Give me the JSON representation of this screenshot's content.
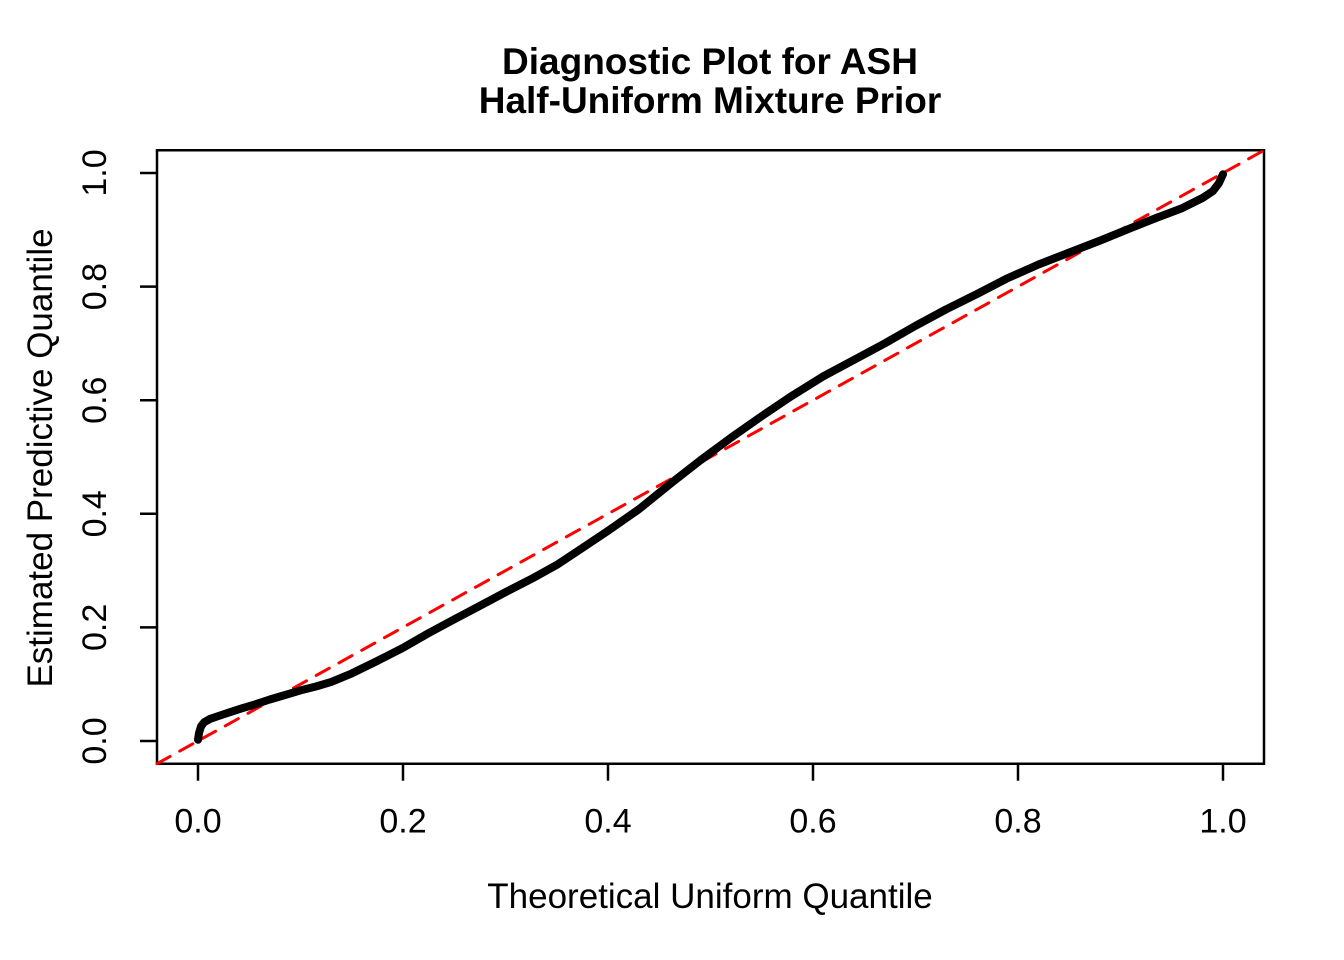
{
  "title": {
    "line1": "Diagnostic Plot for ASH",
    "line2": "Half-Uniform Mixture Prior"
  },
  "colors": {
    "curve": "#000000",
    "reference_line": "#FF0000",
    "background": "#FFFFFF",
    "text": "#000000"
  },
  "chart_data": {
    "type": "line",
    "title": "Diagnostic Plot for ASH\nHalf-Uniform Mixture Prior",
    "xlabel": "Theoretical Uniform Quantile",
    "ylabel": "Estimated Predictive Quantile",
    "xlim": [
      -0.04,
      1.04
    ],
    "ylim": [
      -0.04,
      1.04
    ],
    "x_ticks": [
      0.0,
      0.2,
      0.4,
      0.6,
      0.8,
      1.0
    ],
    "y_ticks": [
      0.0,
      0.2,
      0.4,
      0.6,
      0.8,
      1.0
    ],
    "x_tick_labels": [
      "0.0",
      "0.2",
      "0.4",
      "0.6",
      "0.8",
      "1.0"
    ],
    "y_tick_labels": [
      "0.0",
      "0.2",
      "0.4",
      "0.6",
      "0.8",
      "1.0"
    ],
    "grid": false,
    "legend": null,
    "series": [
      {
        "name": "reference-diagonal",
        "description": "y = x reference line",
        "color": "#FF0000",
        "style": "dashed",
        "width": 3,
        "points": [
          [
            -0.04,
            -0.04
          ],
          [
            1.04,
            1.04
          ]
        ]
      },
      {
        "name": "estimated-vs-theoretical-quantiles",
        "description": "QQ curve of estimated predictive quantiles vs theoretical uniform quantiles",
        "color": "#000000",
        "style": "solid",
        "width": 8,
        "points": [
          [
            0.0,
            0.002
          ],
          [
            0.001,
            0.014
          ],
          [
            0.003,
            0.026
          ],
          [
            0.006,
            0.033
          ],
          [
            0.012,
            0.039
          ],
          [
            0.02,
            0.044
          ],
          [
            0.03,
            0.05
          ],
          [
            0.042,
            0.057
          ],
          [
            0.055,
            0.064
          ],
          [
            0.07,
            0.073
          ],
          [
            0.085,
            0.081
          ],
          [
            0.1,
            0.089
          ],
          [
            0.115,
            0.096
          ],
          [
            0.13,
            0.104
          ],
          [
            0.15,
            0.119
          ],
          [
            0.175,
            0.141
          ],
          [
            0.2,
            0.164
          ],
          [
            0.225,
            0.19
          ],
          [
            0.25,
            0.214
          ],
          [
            0.275,
            0.238
          ],
          [
            0.3,
            0.262
          ],
          [
            0.325,
            0.285
          ],
          [
            0.35,
            0.31
          ],
          [
            0.375,
            0.34
          ],
          [
            0.4,
            0.37
          ],
          [
            0.43,
            0.408
          ],
          [
            0.463,
            0.456
          ],
          [
            0.49,
            0.494
          ],
          [
            0.52,
            0.534
          ],
          [
            0.55,
            0.572
          ],
          [
            0.578,
            0.606
          ],
          [
            0.61,
            0.642
          ],
          [
            0.64,
            0.671
          ],
          [
            0.67,
            0.7
          ],
          [
            0.7,
            0.731
          ],
          [
            0.73,
            0.76
          ],
          [
            0.76,
            0.787
          ],
          [
            0.79,
            0.815
          ],
          [
            0.82,
            0.839
          ],
          [
            0.85,
            0.86
          ],
          [
            0.88,
            0.881
          ],
          [
            0.91,
            0.903
          ],
          [
            0.935,
            0.921
          ],
          [
            0.96,
            0.938
          ],
          [
            0.98,
            0.956
          ],
          [
            0.99,
            0.968
          ],
          [
            0.996,
            0.982
          ],
          [
            1.0,
            0.998
          ]
        ]
      }
    ]
  }
}
